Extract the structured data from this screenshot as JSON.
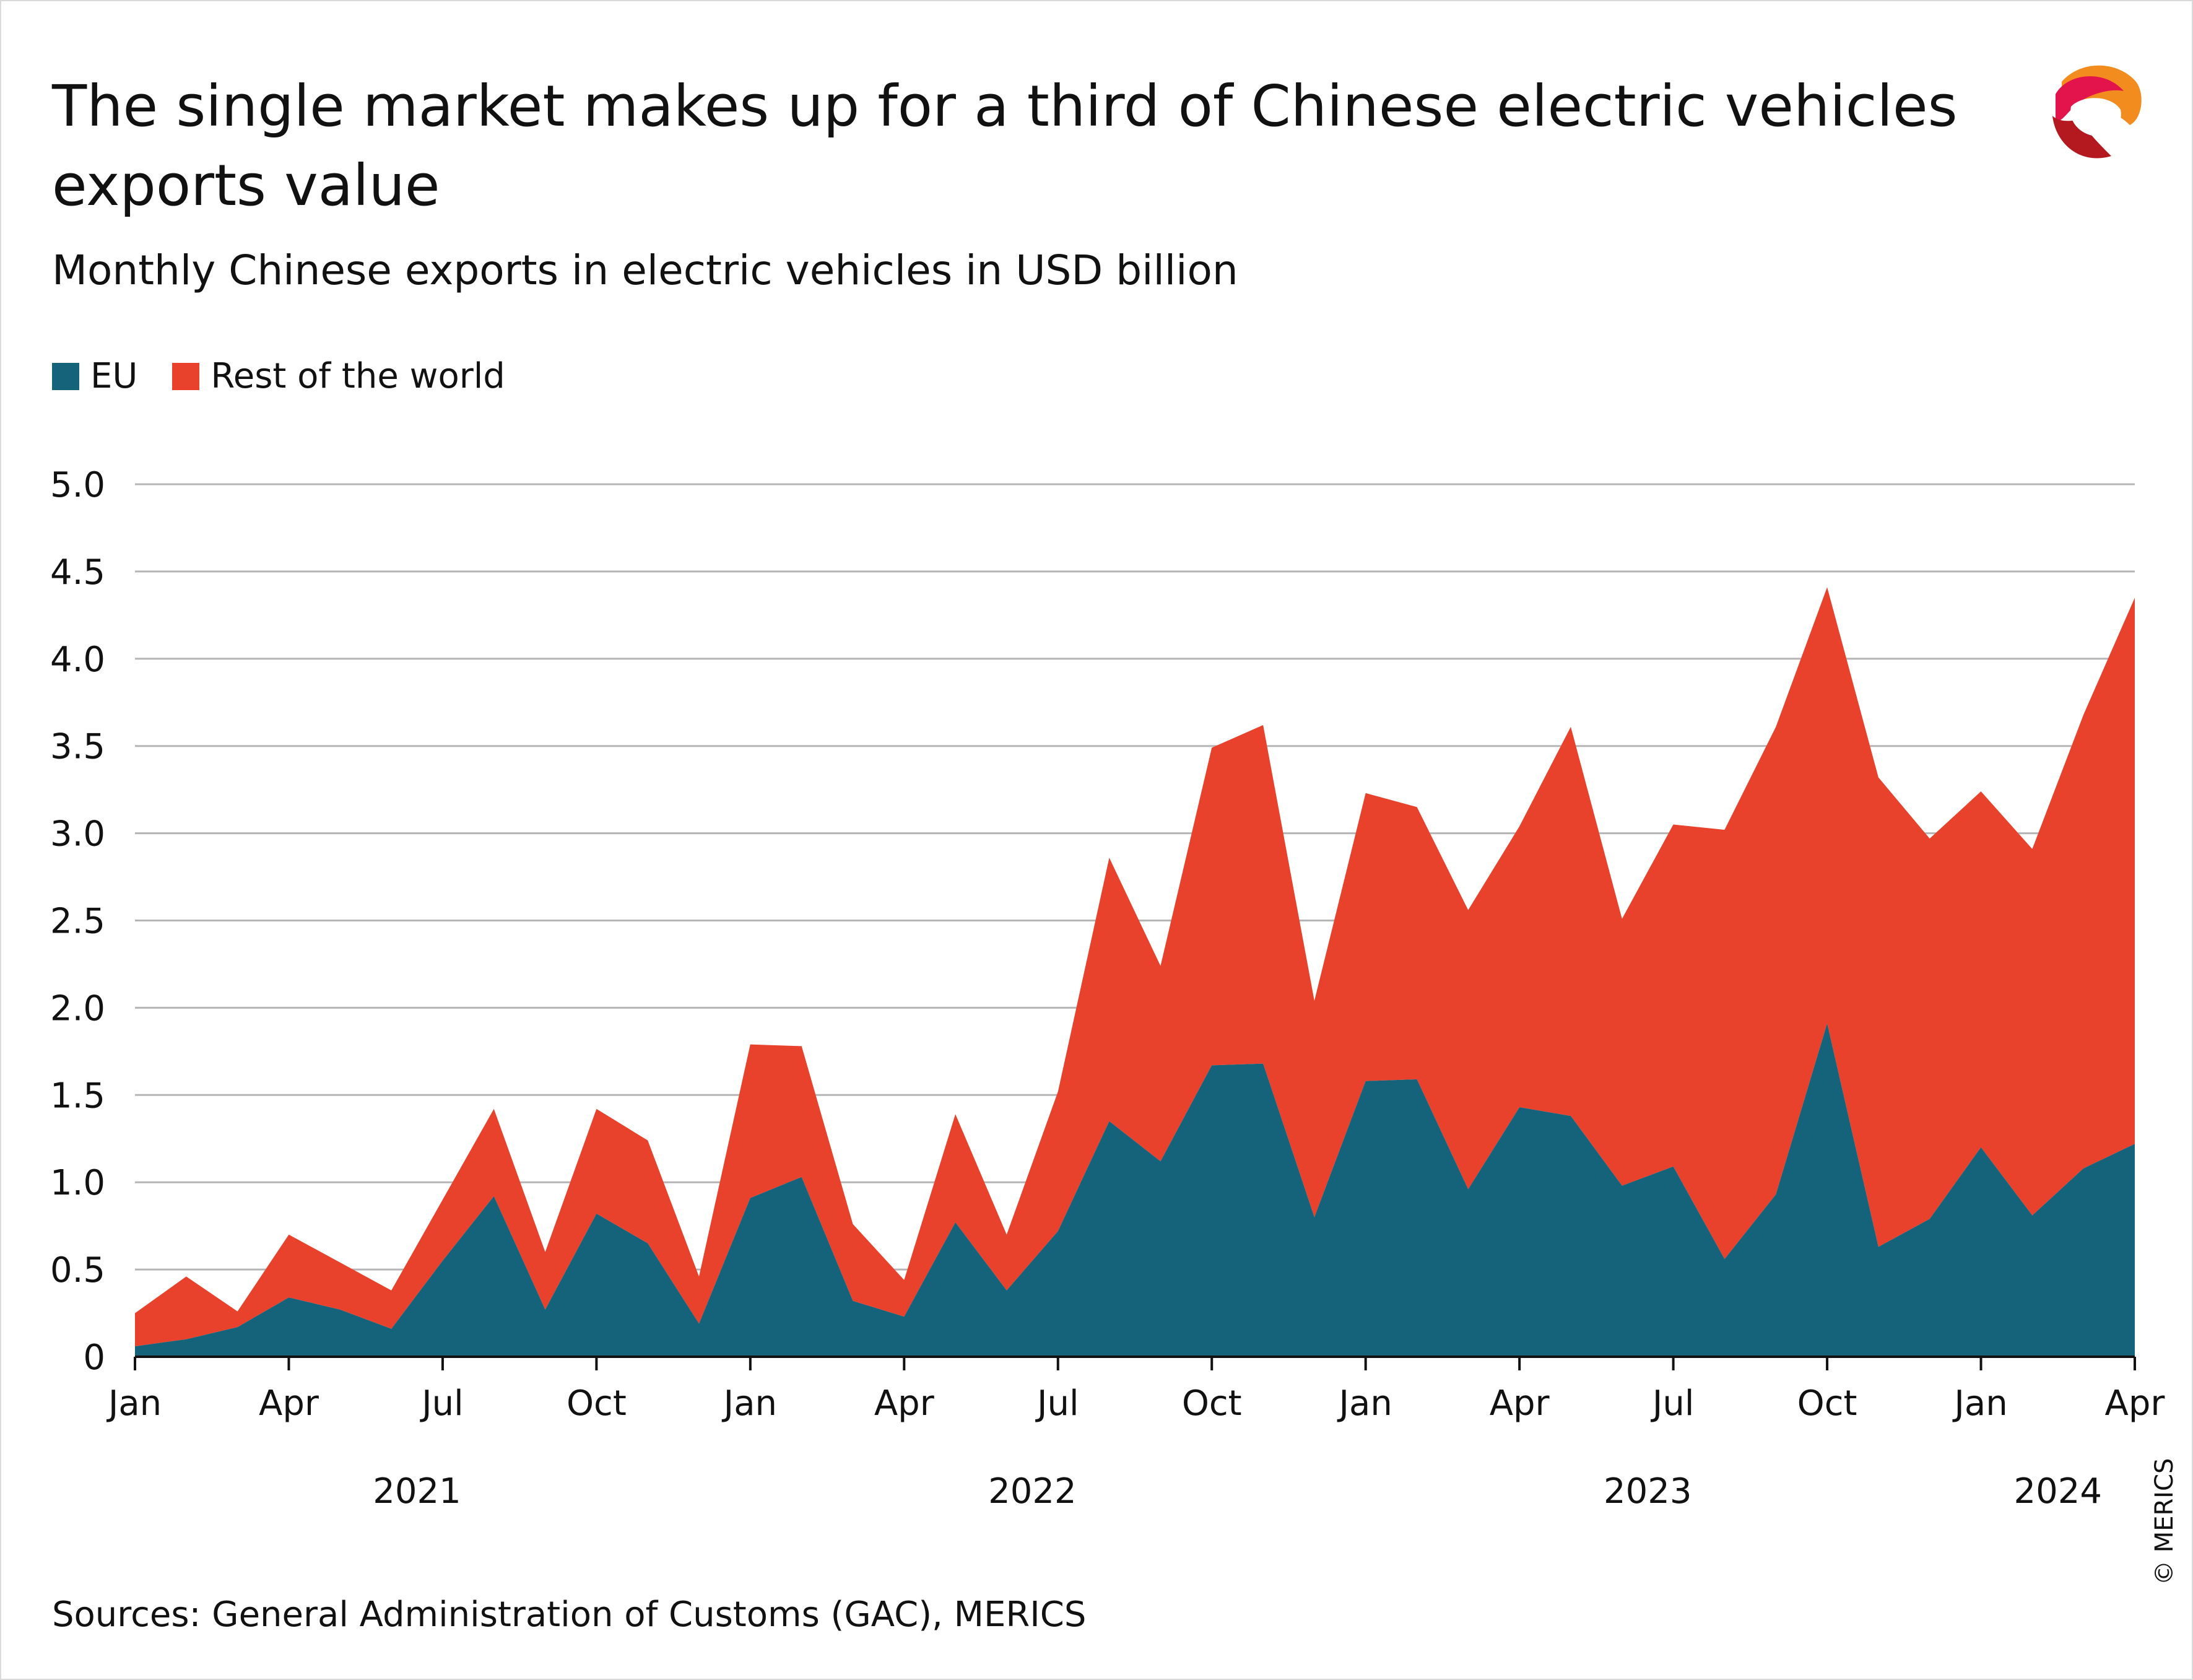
{
  "title": "The single market makes up for a third of Chinese electric vehicles exports value",
  "subtitle": "Monthly Chinese exports in electric vehicles in USD billion",
  "legend": {
    "eu": "EU",
    "rest": "Rest of the world"
  },
  "source": "Sources: General Administration of Customs (GAC), MERICS",
  "copyright": "© MERICS",
  "logo_icon": "merics-logo-icon",
  "colors": {
    "eu": "#15637a",
    "rest": "#e8412c",
    "grid": "#b5b5b5",
    "axis": "#111111"
  },
  "chart_data": {
    "type": "area",
    "stacked": true,
    "title": "The single market makes up for a third of Chinese electric vehicles exports value",
    "subtitle": "Monthly Chinese exports in electric vehicles in USD billion",
    "xlabel": "",
    "ylabel": "",
    "ylim": [
      0,
      5.0
    ],
    "y_ticks": [
      {
        "value": 0,
        "label": "0"
      },
      {
        "value": 0.5,
        "label": "0.5"
      },
      {
        "value": 1.0,
        "label": "1.0"
      },
      {
        "value": 1.5,
        "label": "1.5"
      },
      {
        "value": 2.0,
        "label": "2.0"
      },
      {
        "value": 2.5,
        "label": "2.5"
      },
      {
        "value": 3.0,
        "label": "3.0"
      },
      {
        "value": 3.5,
        "label": "3.5"
      },
      {
        "value": 4.0,
        "label": "4.0"
      },
      {
        "value": 4.5,
        "label": "4.5"
      },
      {
        "value": 5.0,
        "label": "5.0"
      }
    ],
    "grid": true,
    "legend_position": "top-left",
    "x": [
      "2021-01",
      "2021-02",
      "2021-03",
      "2021-04",
      "2021-05",
      "2021-06",
      "2021-07",
      "2021-08",
      "2021-09",
      "2021-10",
      "2021-11",
      "2021-12",
      "2022-01",
      "2022-02",
      "2022-03",
      "2022-04",
      "2022-05",
      "2022-06",
      "2022-07",
      "2022-08",
      "2022-09",
      "2022-10",
      "2022-11",
      "2022-12",
      "2023-01",
      "2023-02",
      "2023-03",
      "2023-04",
      "2023-05",
      "2023-06",
      "2023-07",
      "2023-08",
      "2023-09",
      "2023-10",
      "2023-11",
      "2023-12",
      "2024-01",
      "2024-02",
      "2024-03",
      "2024-04"
    ],
    "x_ticks": [
      {
        "index": 0,
        "label": "Jan"
      },
      {
        "index": 3,
        "label": "Apr"
      },
      {
        "index": 6,
        "label": "Jul"
      },
      {
        "index": 9,
        "label": "Oct"
      },
      {
        "index": 12,
        "label": "Jan"
      },
      {
        "index": 15,
        "label": "Apr"
      },
      {
        "index": 18,
        "label": "Jul"
      },
      {
        "index": 21,
        "label": "Oct"
      },
      {
        "index": 24,
        "label": "Jan"
      },
      {
        "index": 27,
        "label": "Apr"
      },
      {
        "index": 30,
        "label": "Jul"
      },
      {
        "index": 33,
        "label": "Oct"
      },
      {
        "index": 36,
        "label": "Jan"
      },
      {
        "index": 39,
        "label": "Apr"
      }
    ],
    "years": [
      {
        "label": "2021",
        "center_index": 5.5
      },
      {
        "label": "2022",
        "center_index": 17.5
      },
      {
        "label": "2023",
        "center_index": 29.5
      },
      {
        "label": "2024",
        "center_index": 37.5
      }
    ],
    "series": [
      {
        "name": "EU",
        "values": [
          0.06,
          0.1,
          0.17,
          0.34,
          0.27,
          0.16,
          0.55,
          0.92,
          0.27,
          0.82,
          0.65,
          0.19,
          0.91,
          1.03,
          0.32,
          0.23,
          0.77,
          0.38,
          0.72,
          1.35,
          1.12,
          1.67,
          1.68,
          0.8,
          1.58,
          1.59,
          0.96,
          1.43,
          1.38,
          0.98,
          1.09,
          0.56,
          0.93,
          1.91,
          0.63,
          0.79,
          1.2,
          0.81,
          1.08,
          1.22
        ]
      },
      {
        "name": "Rest of the world",
        "values": [
          0.19,
          0.36,
          0.09,
          0.36,
          0.27,
          0.22,
          0.35,
          0.5,
          0.33,
          0.6,
          0.59,
          0.27,
          0.88,
          0.75,
          0.44,
          0.21,
          0.62,
          0.32,
          0.8,
          1.51,
          1.12,
          1.82,
          1.94,
          1.24,
          1.65,
          1.56,
          1.6,
          1.61,
          2.23,
          1.53,
          1.96,
          2.46,
          2.68,
          2.5,
          2.69,
          2.18,
          2.04,
          2.1,
          2.6,
          3.13
        ]
      }
    ]
  }
}
